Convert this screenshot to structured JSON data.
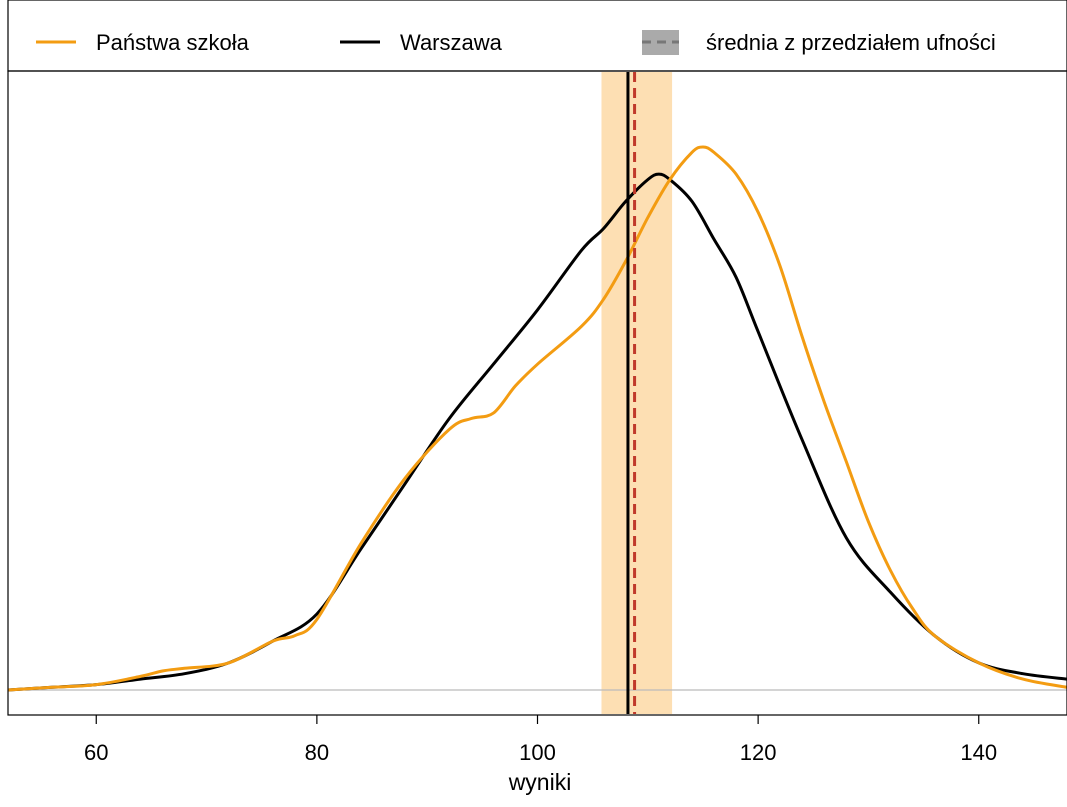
{
  "chart_data": {
    "type": "line",
    "xlabel": "wyniki",
    "ylabel": "",
    "xlim": [
      52,
      148
    ],
    "ylim": [
      0,
      1.04
    ],
    "x_ticks": [
      60,
      80,
      100,
      120,
      140
    ],
    "legend_position": "top",
    "legend": [
      {
        "label": "Państwa szkoła",
        "kind": "line",
        "color": "#F39C12"
      },
      {
        "label": "Warszawa",
        "kind": "line",
        "color": "#000000"
      },
      {
        "label": "średnia z przedziałem ufności",
        "kind": "band-dashed",
        "color": "#A9A9A9"
      }
    ],
    "series": [
      {
        "name": "Państwa szkoła",
        "color": "#F39C12",
        "x": [
          52,
          56,
          60,
          64,
          66,
          68,
          72,
          76,
          78,
          80,
          84,
          88,
          92,
          94,
          96,
          98,
          100,
          104,
          106,
          108,
          110,
          112,
          114,
          115,
          116,
          118,
          120,
          122,
          124,
          126,
          128,
          130,
          132,
          134,
          136,
          140,
          144,
          148
        ],
        "y": [
          0.0,
          0.005,
          0.01,
          0.025,
          0.035,
          0.04,
          0.05,
          0.09,
          0.1,
          0.13,
          0.27,
          0.39,
          0.48,
          0.5,
          0.51,
          0.56,
          0.6,
          0.67,
          0.72,
          0.79,
          0.87,
          0.94,
          0.99,
          1.0,
          0.99,
          0.95,
          0.88,
          0.78,
          0.65,
          0.53,
          0.42,
          0.31,
          0.22,
          0.15,
          0.1,
          0.05,
          0.02,
          0.005
        ]
      },
      {
        "name": "Warszawa",
        "color": "#000000",
        "x": [
          52,
          56,
          60,
          64,
          68,
          72,
          76,
          80,
          84,
          88,
          92,
          96,
          100,
          104,
          106,
          108,
          110,
          111,
          112,
          114,
          116,
          118,
          120,
          124,
          128,
          132,
          136,
          140,
          144,
          148
        ],
        "y": [
          0.0,
          0.005,
          0.01,
          0.02,
          0.03,
          0.05,
          0.09,
          0.14,
          0.26,
          0.38,
          0.5,
          0.6,
          0.7,
          0.81,
          0.85,
          0.9,
          0.94,
          0.95,
          0.94,
          0.9,
          0.83,
          0.76,
          0.66,
          0.46,
          0.28,
          0.18,
          0.1,
          0.05,
          0.03,
          0.02
        ]
      }
    ],
    "mean_lines": [
      {
        "name": "Państwa szkoła",
        "x": 108.8,
        "color": "#C0392B",
        "style": "dashed"
      },
      {
        "name": "Warszawa",
        "x": 108.2,
        "color": "#000000",
        "style": "solid"
      }
    ],
    "confidence_band": {
      "x_from": 105.8,
      "x_to": 112.2,
      "color": "#FDDFB3"
    }
  }
}
